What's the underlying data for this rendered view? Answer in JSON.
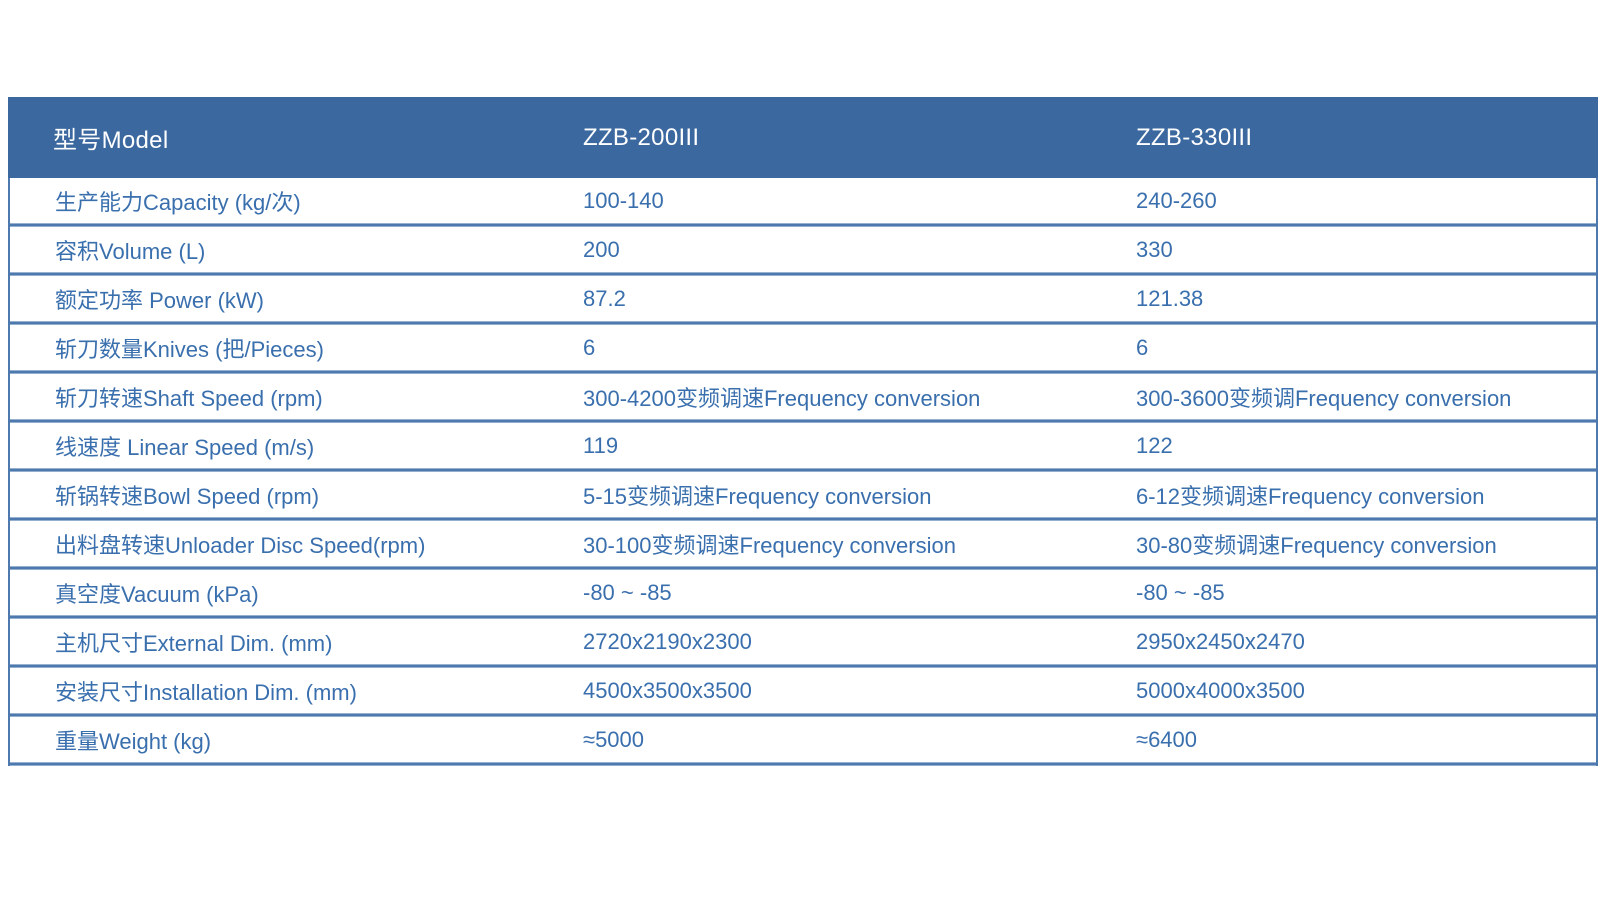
{
  "table": {
    "colors": {
      "header_bg": "#3b689f",
      "header_text": "#ffffff",
      "body_text": "#3a6fae",
      "grid_line": "#4d79ae"
    },
    "header": {
      "model_label": "型号Model",
      "model_1": "ZZB-200III",
      "model_2": "ZZB-330III"
    },
    "rows": [
      {
        "label": "生产能力Capacity (kg/次)",
        "zzb200": "100-140",
        "zzb330": "240-260"
      },
      {
        "label": "容积Volume (L)",
        "zzb200": "200",
        "zzb330": "330"
      },
      {
        "label": "额定功率 Power (kW)",
        "zzb200": "87.2",
        "zzb330": "121.38"
      },
      {
        "label": "斩刀数量Knives (把/Pieces)",
        "zzb200": "6",
        "zzb330": "6"
      },
      {
        "label": "斩刀转速Shaft Speed (rpm)",
        "zzb200": "300-4200变频调速Frequency conversion",
        "zzb330": "300-3600变频调Frequency conversion"
      },
      {
        "label": "线速度 Linear Speed (m/s)",
        "zzb200": "119",
        "zzb330": "122"
      },
      {
        "label": "斩锅转速Bowl Speed (rpm)",
        "zzb200": "5-15变频调速Frequency conversion",
        "zzb330": "6-12变频调速Frequency conversion"
      },
      {
        "label": "出料盘转速Unloader Disc Speed(rpm)",
        "zzb200": "30-100变频调速Frequency conversion",
        "zzb330": "30-80变频调速Frequency conversion"
      },
      {
        "label": "真空度Vacuum (kPa)",
        "zzb200": "-80 ~ -85",
        "zzb330": "-80 ~ -85"
      },
      {
        "label": "主机尺寸External Dim. (mm)",
        "zzb200": "2720x2190x2300",
        "zzb330": "2950x2450x2470"
      },
      {
        "label": "安装尺寸Installation Dim. (mm)",
        "zzb200": "4500x3500x3500",
        "zzb330": "5000x4000x3500"
      },
      {
        "label": "重量Weight (kg)",
        "zzb200": "≈5000",
        "zzb330": "≈6400"
      }
    ]
  }
}
